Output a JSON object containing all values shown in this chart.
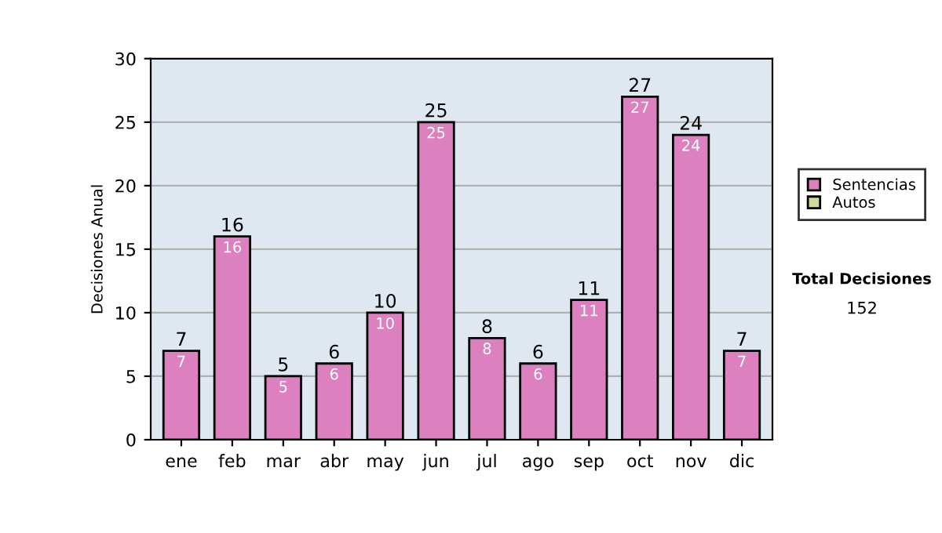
{
  "chart_data": {
    "type": "bar",
    "stacked": true,
    "ylabel": "Decisiones Anual",
    "categories": [
      "ene",
      "feb",
      "mar",
      "abr",
      "may",
      "jun",
      "jul",
      "ago",
      "sep",
      "oct",
      "nov",
      "dic"
    ],
    "series": [
      {
        "name": "Sentencias",
        "color": "#dd80c0",
        "values": [
          7,
          16,
          5,
          6,
          10,
          25,
          8,
          6,
          11,
          27,
          24,
          7
        ],
        "value_labels": [
          "7",
          "16",
          "5",
          "6",
          "10",
          "25",
          "8",
          "6",
          "11",
          "27",
          "24",
          "7"
        ]
      },
      {
        "name": "Autos",
        "color": "#ccdd99",
        "values": [
          0,
          0,
          0,
          0,
          0,
          0,
          0,
          0,
          0,
          0,
          0,
          0
        ]
      }
    ],
    "totals": [
      "7",
      "16",
      "5",
      "6",
      "10",
      "25",
      "8",
      "6",
      "11",
      "27",
      "24",
      "7"
    ],
    "ylim": [
      0,
      30
    ],
    "yticks": [
      0,
      5,
      10,
      15,
      20,
      25,
      30
    ],
    "grid": "y",
    "legend": "right",
    "annotations": [
      "Total Decisiones",
      "152"
    ]
  }
}
